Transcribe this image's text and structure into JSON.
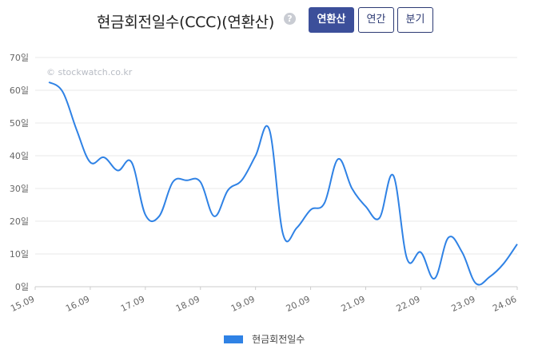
{
  "header": {
    "title": "현금회전일수(CCC)(연환산)",
    "help_icon": "?",
    "buttons": [
      {
        "label": "연환산",
        "active": true
      },
      {
        "label": "연간",
        "active": false
      },
      {
        "label": "분기",
        "active": false
      }
    ]
  },
  "watermark": "© stockwatch.co.kr",
  "chart_data": {
    "type": "line",
    "title": "",
    "xlabel": "",
    "ylabel": "",
    "ylim": [
      0,
      70
    ],
    "y_ticks": [
      "0일",
      "10일",
      "20일",
      "30일",
      "40일",
      "50일",
      "60일",
      "70일"
    ],
    "x_ticks": [
      "15.09",
      "16.09",
      "17.09",
      "18.09",
      "19.09",
      "20.09",
      "21.09",
      "22.09",
      "23.09",
      "24.06"
    ],
    "grid": true,
    "legend_position": "bottom-center",
    "color": "#2f82e5",
    "series": [
      {
        "name": "현금회전일수",
        "x": [
          "15.12",
          "16.03",
          "16.06",
          "16.09",
          "16.12",
          "17.03",
          "17.06",
          "17.09",
          "17.12",
          "18.03",
          "18.06",
          "18.09",
          "18.12",
          "19.03",
          "19.06",
          "19.09",
          "19.12",
          "20.03",
          "20.06",
          "20.09",
          "20.12",
          "21.03",
          "21.06",
          "21.09",
          "21.12",
          "22.03",
          "22.06",
          "22.09",
          "22.12",
          "23.03",
          "23.06",
          "23.09",
          "23.12",
          "24.03",
          "24.06"
        ],
        "values": [
          62.5,
          59.5,
          48,
          38,
          39.5,
          35.5,
          38,
          22,
          21.5,
          32,
          32.5,
          32,
          21.5,
          29.5,
          32.5,
          40,
          48,
          16,
          18,
          23.5,
          25.5,
          39,
          30,
          24.5,
          21,
          34,
          8.5,
          10.5,
          2.5,
          15,
          10.5,
          1,
          3,
          7,
          13
        ]
      }
    ]
  }
}
